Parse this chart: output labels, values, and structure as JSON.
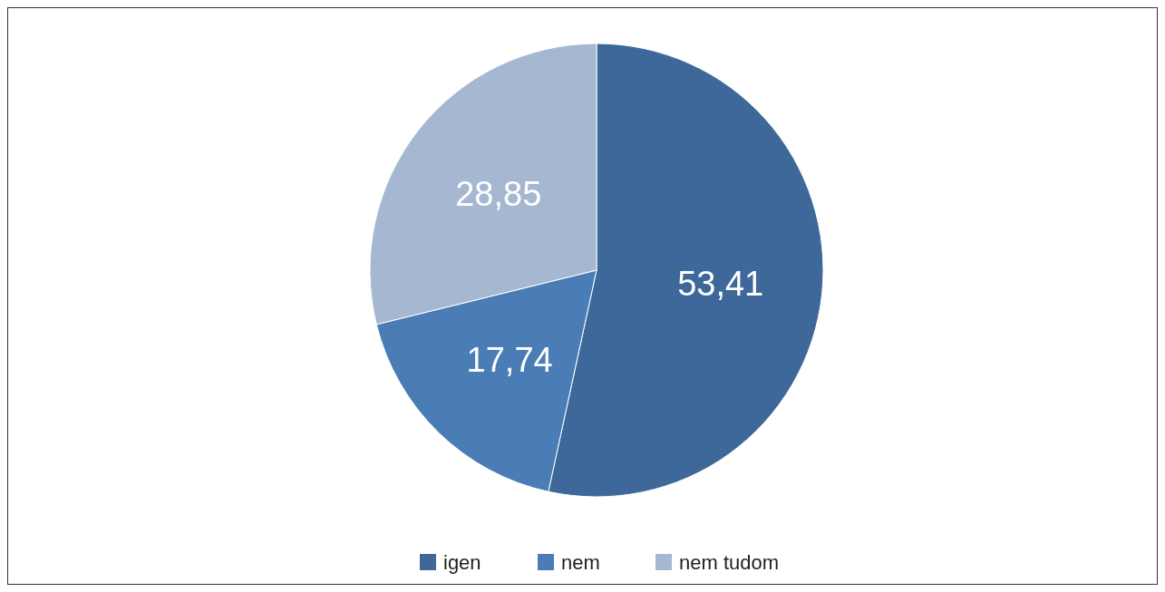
{
  "chart_data": {
    "type": "pie",
    "categories": [
      "igen",
      "nem",
      "nem tudom"
    ],
    "values": [
      53.41,
      17.74,
      28.85
    ],
    "colors": [
      "#3d6899",
      "#4a7db5",
      "#a6b7d1"
    ],
    "value_labels": [
      "53,41",
      "17,74",
      "28,85"
    ],
    "legend": "bottom"
  }
}
